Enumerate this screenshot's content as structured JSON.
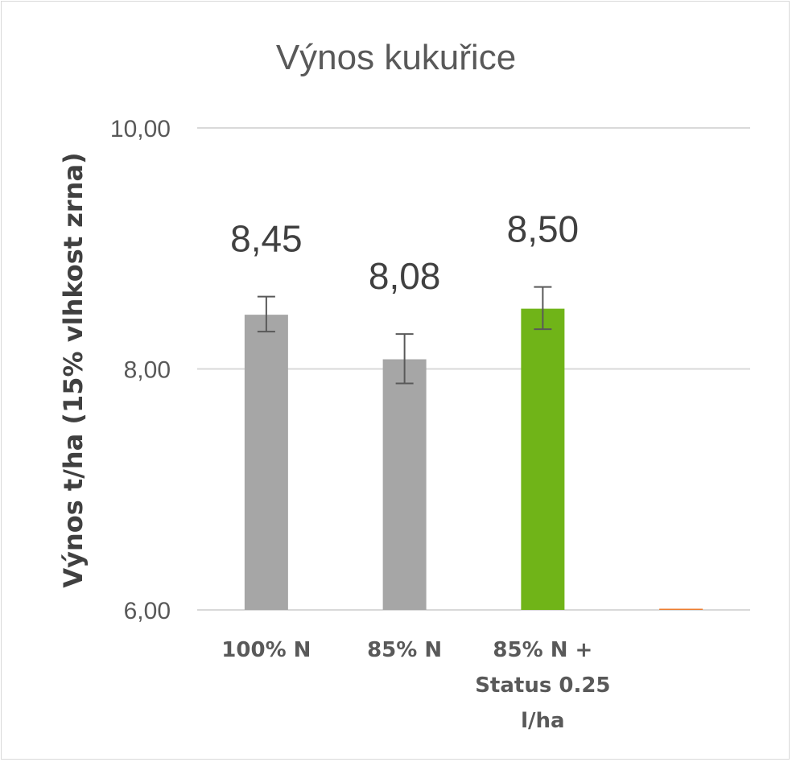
{
  "chart_data": {
    "type": "bar",
    "title": "Výnos kukuřice",
    "xlabel": "",
    "ylabel": "Výnos t/ha (15% vlhkost zrna)",
    "ylim": [
      6,
      10
    ],
    "yticks": [
      6,
      8,
      10
    ],
    "ytick_labels": [
      "6,00",
      "8,00",
      "10,00"
    ],
    "grid": true,
    "legend": "none",
    "categories": [
      [
        "100% N"
      ],
      [
        "85% N"
      ],
      [
        "85% N +",
        "Status 0.25",
        "l/ha"
      ],
      [
        ""
      ]
    ],
    "series": [
      {
        "values": [
          8.45,
          8.08,
          8.5,
          6.0
        ],
        "data_labels": [
          "8,45",
          "8,08",
          "8,50",
          ""
        ],
        "error_low": [
          8.31,
          7.88,
          8.33,
          null
        ],
        "error_high": [
          8.6,
          8.29,
          8.68,
          null
        ],
        "colors": [
          "#a6a6a6",
          "#a6a6a6",
          "#70b418",
          "#ed7d31"
        ]
      }
    ]
  }
}
